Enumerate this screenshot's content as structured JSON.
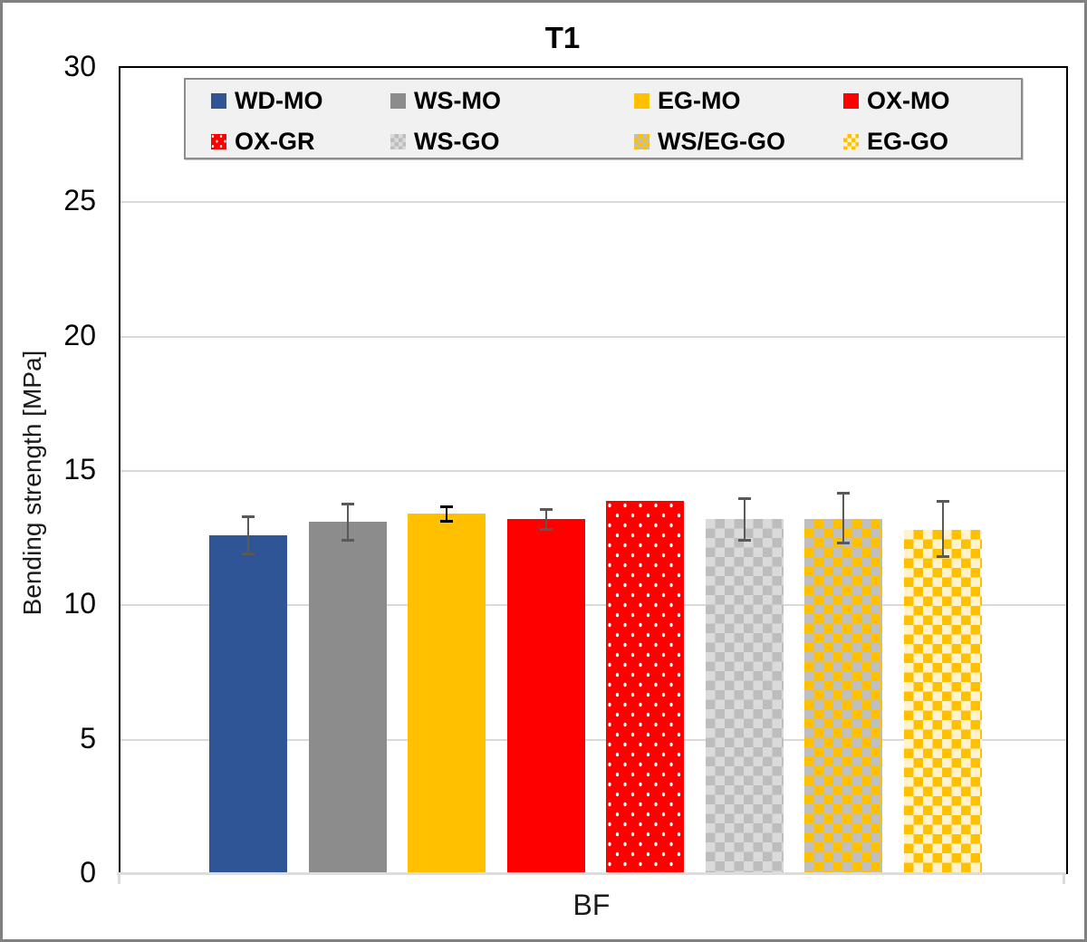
{
  "title": "T1",
  "y_axis": {
    "label": "Bending strength [MPa]",
    "ticks": [
      0,
      5,
      10,
      15,
      20,
      25,
      30
    ],
    "min": 0,
    "max": 30
  },
  "x_axis": {
    "category_label": "BF"
  },
  "style_colors": {
    "gridline": "#D9D9D9",
    "plot_border": "#000000",
    "figure_border": "#808080",
    "legend_background": "#F1F1F1",
    "legend_border": "#8C8C8C"
  },
  "chart_data": {
    "type": "bar",
    "title": "T1",
    "xlabel": "BF",
    "ylabel": "Bending strength [MPa]",
    "ylim": [
      0,
      30
    ],
    "grid": true,
    "legend_position": "top-inside",
    "unit": "MPa",
    "categories": [
      "BF"
    ],
    "series": [
      {
        "name": "WD-MO",
        "value": 12.6,
        "err_hi": 13.3,
        "err_lo": 11.9,
        "fill": "solid",
        "color": "#2F5597",
        "color2": null,
        "err_color": "#595959"
      },
      {
        "name": "WS-MO",
        "value": 13.1,
        "err_hi": 13.8,
        "err_lo": 12.4,
        "fill": "solid",
        "color": "#8C8C8C",
        "color2": null,
        "err_color": "#595959"
      },
      {
        "name": "EG-MO",
        "value": 13.4,
        "err_hi": 13.7,
        "err_lo": 13.1,
        "fill": "solid",
        "color": "#FFC000",
        "color2": null,
        "err_color": "#000000"
      },
      {
        "name": "OX-MO",
        "value": 13.2,
        "err_hi": 13.6,
        "err_lo": 12.8,
        "fill": "solid",
        "color": "#FE0000",
        "color2": null,
        "err_color": "#595959"
      },
      {
        "name": "OX-GR",
        "value": 13.9,
        "err_hi": null,
        "err_lo": null,
        "fill": "dots",
        "color": "#FE0000",
        "color2": "#FFFFFF",
        "err_color": "#595959"
      },
      {
        "name": "WS-GO",
        "value": 13.2,
        "err_hi": 14.0,
        "err_lo": 12.4,
        "fill": "checker",
        "color": "#BDBDBD",
        "color2": "#DADADA",
        "err_color": "#595959"
      },
      {
        "name": "WS/EG-GO",
        "value": 13.2,
        "err_hi": 14.2,
        "err_lo": 12.3,
        "fill": "checker",
        "color": "#FFC000",
        "color2": "#BFBFBF",
        "err_color": "#595959"
      },
      {
        "name": "EG-GO",
        "value": 12.8,
        "err_hi": 13.9,
        "err_lo": 11.8,
        "fill": "checker",
        "color": "#FFC000",
        "color2": "#FFF2CC",
        "err_color": "#595959"
      }
    ]
  }
}
